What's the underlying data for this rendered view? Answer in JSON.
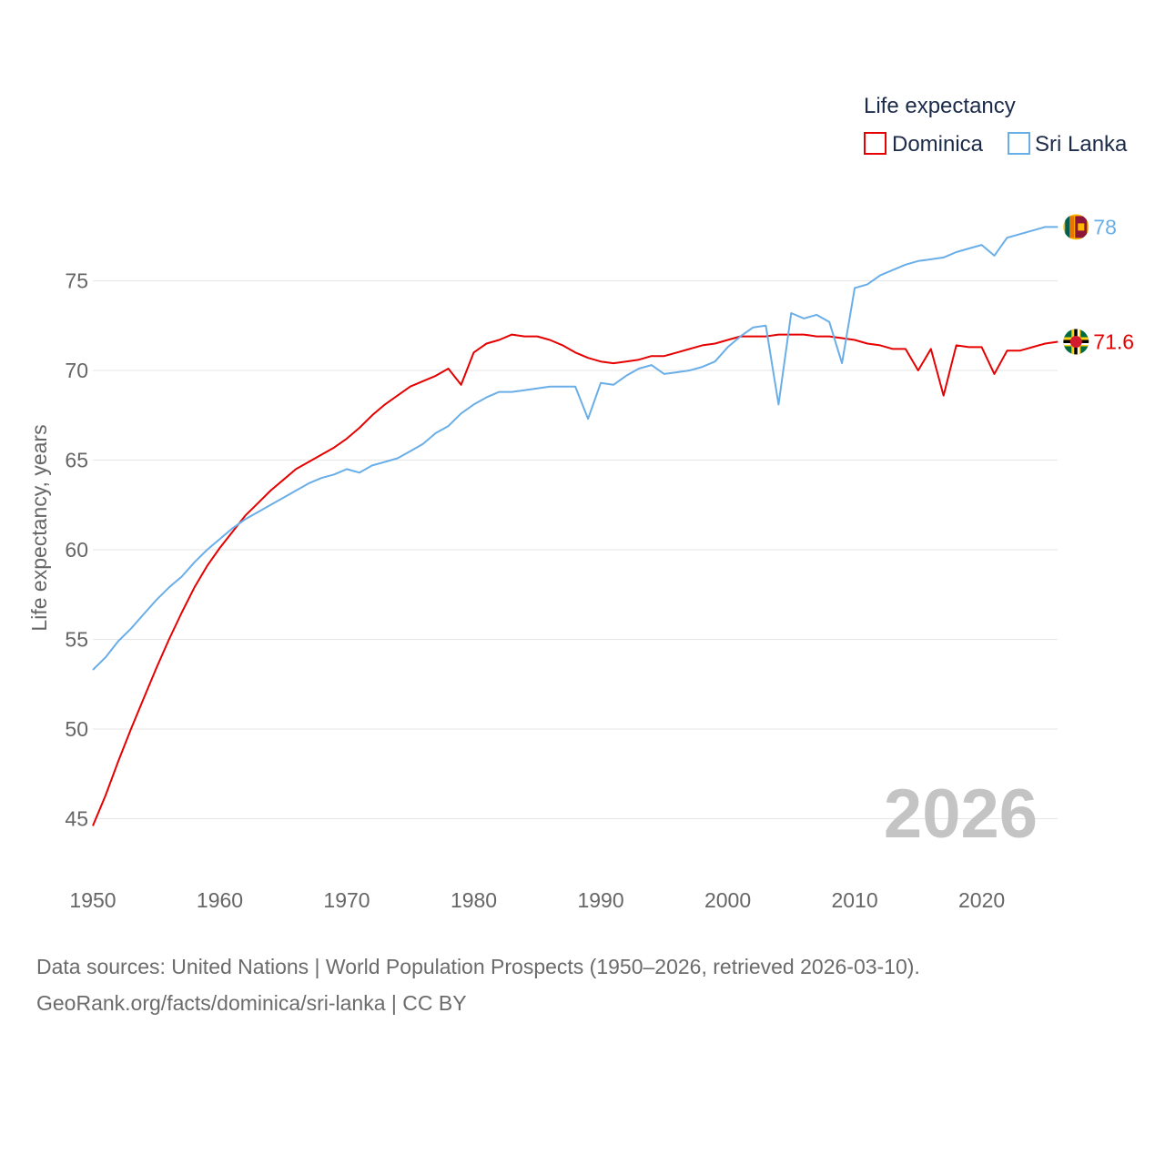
{
  "chart_data": {
    "type": "line",
    "legend_title": "Life expectancy",
    "ylabel": "Life expectancy, years",
    "xlabel": "",
    "xlim": [
      1950,
      2026
    ],
    "ylim": [
      44,
      80.5
    ],
    "x_ticks": [
      1950,
      1960,
      1970,
      1980,
      1990,
      2000,
      2010,
      2020
    ],
    "y_ticks": [
      45,
      50,
      55,
      60,
      65,
      70,
      75
    ],
    "year_label": "2026",
    "x": [
      1950,
      1951,
      1952,
      1953,
      1954,
      1955,
      1956,
      1957,
      1958,
      1959,
      1960,
      1961,
      1962,
      1963,
      1964,
      1965,
      1966,
      1967,
      1968,
      1969,
      1970,
      1971,
      1972,
      1973,
      1974,
      1975,
      1976,
      1977,
      1978,
      1979,
      1980,
      1981,
      1982,
      1983,
      1984,
      1985,
      1986,
      1987,
      1988,
      1989,
      1990,
      1991,
      1992,
      1993,
      1994,
      1995,
      1996,
      1997,
      1998,
      1999,
      2000,
      2001,
      2002,
      2003,
      2004,
      2005,
      2006,
      2007,
      2008,
      2009,
      2010,
      2011,
      2012,
      2013,
      2014,
      2015,
      2016,
      2017,
      2018,
      2019,
      2020,
      2021,
      2022,
      2023,
      2024,
      2025,
      2026
    ],
    "series": [
      {
        "name": "Dominica",
        "color": "#e60000",
        "end_label": "71.6",
        "flag_icon": "dominica-flag-icon",
        "values": [
          44.6,
          46.3,
          48.2,
          50.0,
          51.7,
          53.4,
          55.0,
          56.5,
          57.9,
          59.1,
          60.1,
          61.0,
          61.9,
          62.6,
          63.3,
          63.9,
          64.5,
          64.9,
          65.3,
          65.7,
          66.2,
          66.8,
          67.5,
          68.1,
          68.6,
          69.1,
          69.4,
          69.7,
          70.1,
          69.2,
          71.0,
          71.5,
          71.7,
          72.0,
          71.9,
          71.9,
          71.7,
          71.4,
          71.0,
          70.7,
          70.5,
          70.4,
          70.5,
          70.6,
          70.8,
          70.8,
          71.0,
          71.2,
          71.4,
          71.5,
          71.7,
          71.9,
          71.9,
          71.9,
          72.0,
          72.0,
          72.0,
          71.9,
          71.9,
          71.8,
          71.7,
          71.5,
          71.4,
          71.2,
          71.2,
          70.0,
          71.2,
          68.6,
          71.4,
          71.3,
          71.3,
          69.8,
          71.1,
          71.1,
          71.3,
          71.5,
          71.6
        ]
      },
      {
        "name": "Sri Lanka",
        "color": "#6aaee8",
        "end_label": "78",
        "flag_icon": "sri-lanka-flag-icon",
        "values": [
          53.3,
          54.0,
          54.9,
          55.6,
          56.4,
          57.2,
          57.9,
          58.5,
          59.3,
          60.0,
          60.6,
          61.2,
          61.7,
          62.1,
          62.5,
          62.9,
          63.3,
          63.7,
          64.0,
          64.2,
          64.5,
          64.3,
          64.7,
          64.9,
          65.1,
          65.5,
          65.9,
          66.5,
          66.9,
          67.6,
          68.1,
          68.5,
          68.8,
          68.8,
          68.9,
          69.0,
          69.1,
          69.1,
          69.1,
          67.3,
          69.3,
          69.2,
          69.7,
          70.1,
          70.3,
          69.8,
          69.9,
          70.0,
          70.2,
          70.5,
          71.3,
          71.9,
          72.4,
          72.5,
          68.1,
          73.2,
          72.9,
          73.1,
          72.7,
          70.4,
          74.6,
          74.8,
          75.3,
          75.6,
          75.9,
          76.1,
          76.2,
          76.3,
          76.6,
          76.8,
          77.0,
          76.4,
          77.4,
          77.6,
          77.8,
          78.0,
          78.0
        ]
      }
    ]
  },
  "footer": {
    "line1": "Data sources: United Nations | World Population Prospects (1950–2026, retrieved 2026-03-10).",
    "line2": "GeoRank.org/facts/dominica/sri-lanka | CC BY"
  }
}
